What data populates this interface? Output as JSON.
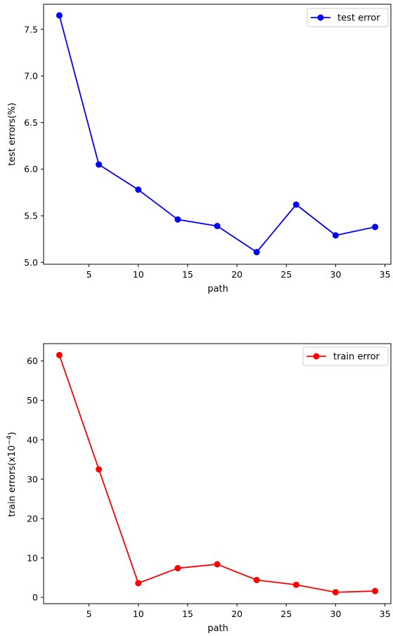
{
  "chart_data": [
    {
      "type": "line",
      "x": [
        2,
        6,
        10,
        14,
        18,
        22,
        26,
        30,
        34
      ],
      "series": [
        {
          "name": "test error",
          "values": [
            7.65,
            6.05,
            5.78,
            5.46,
            5.39,
            5.11,
            5.62,
            5.29,
            5.38
          ],
          "color": "#0000ff"
        }
      ],
      "title": "",
      "xlabel": "path",
      "ylabel": "test errors(%)",
      "xticks": [
        5,
        10,
        15,
        20,
        25,
        30,
        35
      ],
      "xtick_labels": [
        "5",
        "10",
        "15",
        "20",
        "25",
        "30",
        "35"
      ],
      "yticks": [
        5.0,
        5.5,
        6.0,
        6.5,
        7.0,
        7.5
      ],
      "ytick_labels": [
        "5.0",
        "5.5",
        "6.0",
        "6.5",
        "7.0",
        "7.5"
      ],
      "xlim": [
        0.4,
        35.6
      ],
      "ylim": [
        4.98,
        7.77
      ],
      "legend_position": "top-right",
      "grid": false
    },
    {
      "type": "line",
      "x": [
        2,
        6,
        10,
        14,
        18,
        22,
        26,
        30,
        34
      ],
      "series": [
        {
          "name": "train error",
          "values": [
            61.5,
            32.5,
            3.6,
            7.4,
            8.4,
            4.4,
            3.2,
            1.3,
            1.6
          ],
          "color": "#ff0000"
        }
      ],
      "title": "",
      "xlabel": "path",
      "ylabel": "train errors(x10",
      "ylabel_sup": "−4",
      "ylabel_end": ")",
      "xticks": [
        5,
        10,
        15,
        20,
        25,
        30,
        35
      ],
      "xtick_labels": [
        "5",
        "10",
        "15",
        "20",
        "25",
        "30",
        "35"
      ],
      "yticks": [
        0,
        10,
        20,
        30,
        40,
        50,
        60
      ],
      "ytick_labels": [
        "0",
        "10",
        "20",
        "30",
        "40",
        "50",
        "60"
      ],
      "xlim": [
        0.4,
        35.6
      ],
      "ylim": [
        -1.6,
        64.4
      ],
      "legend_position": "top-right",
      "grid": false
    }
  ]
}
